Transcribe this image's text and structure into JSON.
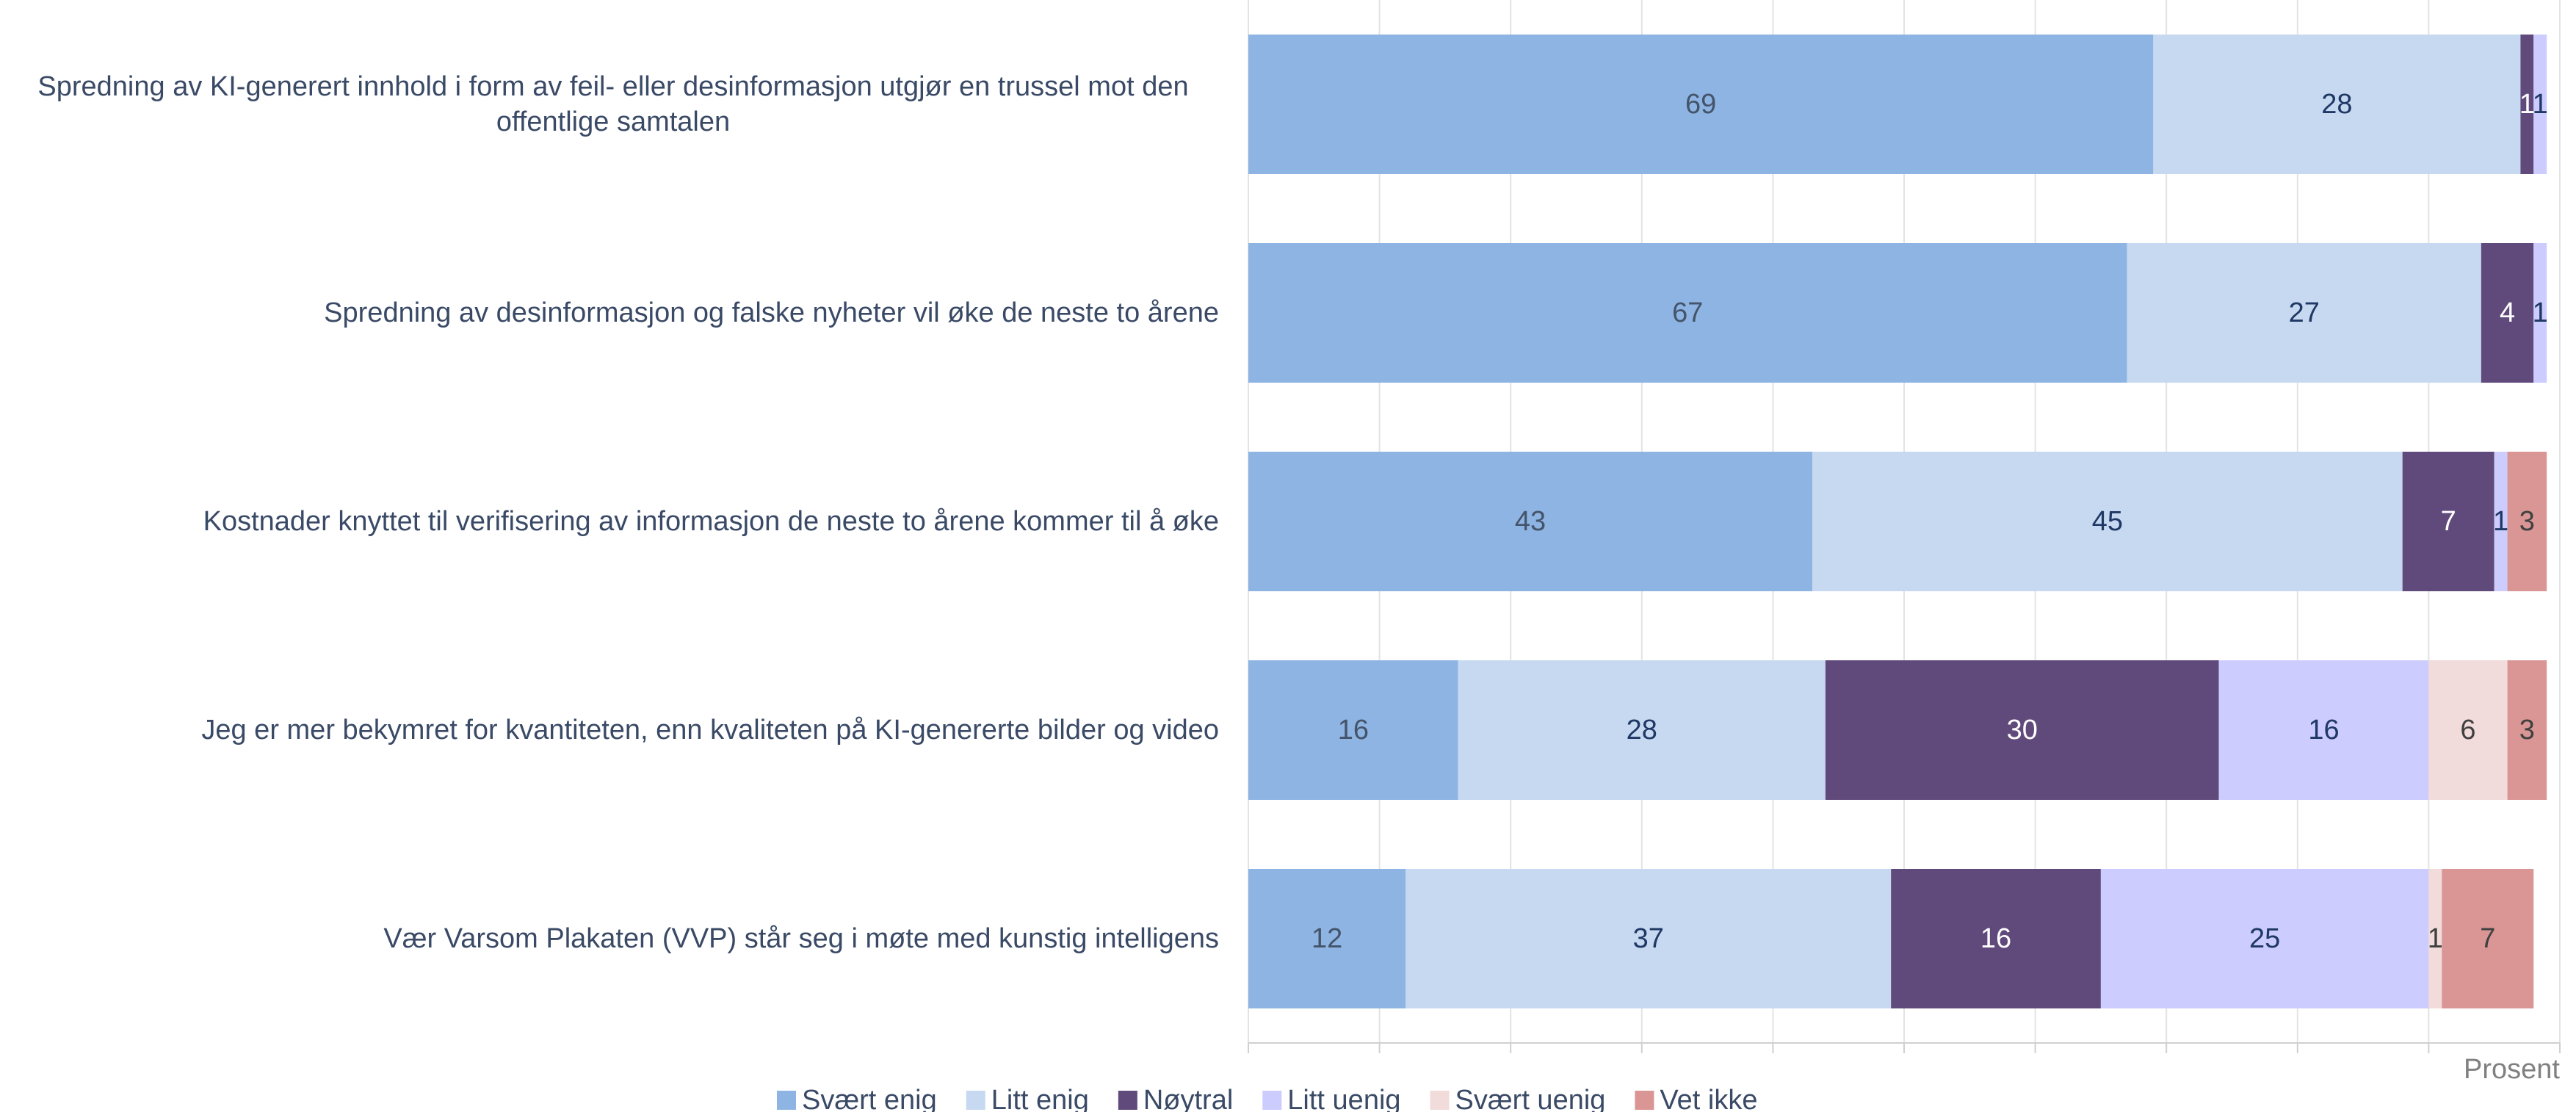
{
  "chart_data": {
    "type": "stacked_barh",
    "categories": [
      "Spredning av KI-generert innhold i form av feil- eller desinformasjon utgjør en trussel mot den offentlige samtalen",
      "Spredning av desinformasjon og falske nyheter vil øke de neste to årene",
      "Kostnader knyttet til verifisering av informasjon de neste to årene kommer til å øke",
      "Jeg er mer bekymret for kvantiteten, enn kvaliteten på KI-genererte bilder og video",
      "Vær Varsom Plakaten (VVP) står seg i møte med kunstig intelligens"
    ],
    "series": [
      {
        "name": "Svært enig",
        "color": "#8eb4e3",
        "values": [
          69,
          67,
          43,
          16,
          12
        ]
      },
      {
        "name": "Litt enig",
        "color": "#c6d9f1",
        "values": [
          28,
          27,
          45,
          28,
          37
        ]
      },
      {
        "name": "Nøytral",
        "color": "#604a7b",
        "values": [
          1,
          4,
          7,
          30,
          16
        ]
      },
      {
        "name": "Litt uenig",
        "color": "#ccccff",
        "values": [
          1,
          1,
          1,
          16,
          25
        ]
      },
      {
        "name": "Svært uenig",
        "color": "#f2dcdb",
        "values": [
          null,
          null,
          null,
          6,
          1
        ]
      },
      {
        "name": "Vet ikke",
        "color": "#d99694",
        "values": [
          null,
          null,
          3,
          3,
          7
        ]
      }
    ],
    "xlabel": "Prosent",
    "xlim": [
      0,
      100
    ],
    "xticks": [
      0,
      10,
      20,
      30,
      40,
      50,
      60,
      70,
      80,
      90,
      100
    ],
    "grid": true
  }
}
